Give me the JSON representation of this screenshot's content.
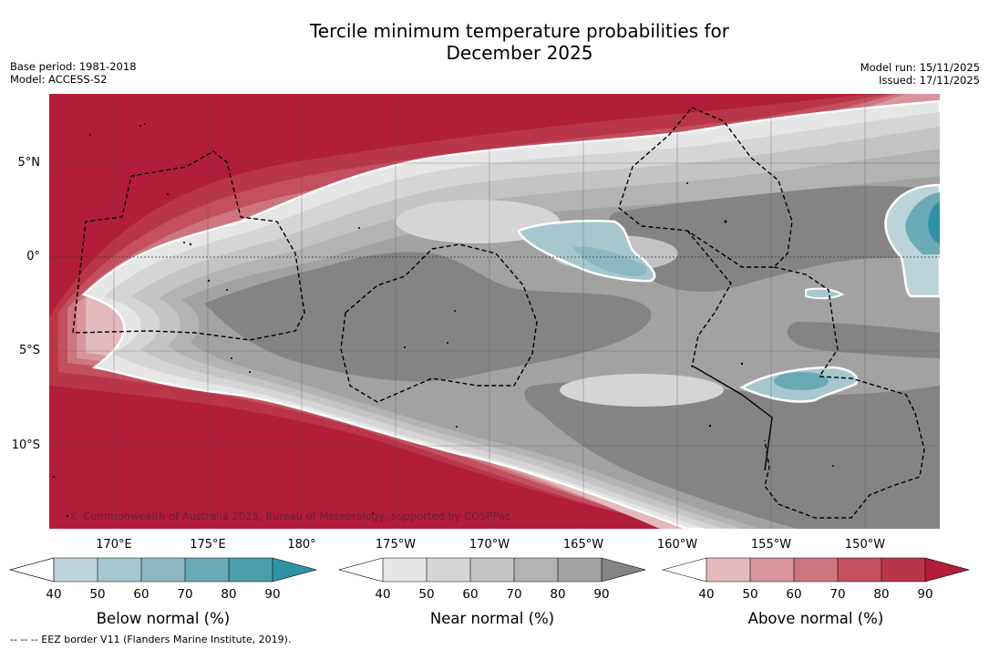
{
  "title": "Tercile minimum temperature probabilities for December 2025",
  "title_lines": [
    "Tercile minimum temperature probabilities for",
    "December 2025"
  ],
  "meta_left": [
    "Base period: 1981-2018",
    "Model: ACCESS-S2"
  ],
  "meta_right": [
    "Model run: 15/11/2025",
    "Issued: 17/11/2025"
  ],
  "lat_labels": [
    "5°N",
    "0°",
    "5°S",
    "10°S"
  ],
  "lon_labels": [
    "170°E",
    "175°E",
    "180°",
    "175°W",
    "170°W",
    "165°W",
    "160°W",
    "155°W",
    "150°W"
  ],
  "copyright": "© Commonwealth of Australia 2025, Bureau of Meteorology, supported by COSPPac",
  "colorbars": [
    {
      "title": "Below normal (%)",
      "ticks": [
        "40",
        "50",
        "60",
        "70",
        "80",
        "90"
      ],
      "colors": [
        "#ffffff",
        "#bdd3da",
        "#a7c7ce",
        "#8db8c2",
        "#6aaab6",
        "#4b9dac",
        "#2e93a5"
      ]
    },
    {
      "title": "Near normal (%)",
      "ticks": [
        "40",
        "50",
        "60",
        "70",
        "80",
        "90"
      ],
      "colors": [
        "#ffffff",
        "#e6e6e6",
        "#d5d5d5",
        "#c4c4c4",
        "#b3b3b3",
        "#a2a2a2",
        "#848484"
      ]
    },
    {
      "title": "Above normal (%)",
      "ticks": [
        "40",
        "50",
        "60",
        "70",
        "80",
        "90"
      ],
      "colors": [
        "#ffffff",
        "#e3b9be",
        "#d8959c",
        "#cd7680",
        "#c3505e",
        "#b93649",
        "#b21d39"
      ]
    }
  ],
  "footnote": "--  --  -- EEZ border V11 (Flanders Marine Institute, 2019)."
}
